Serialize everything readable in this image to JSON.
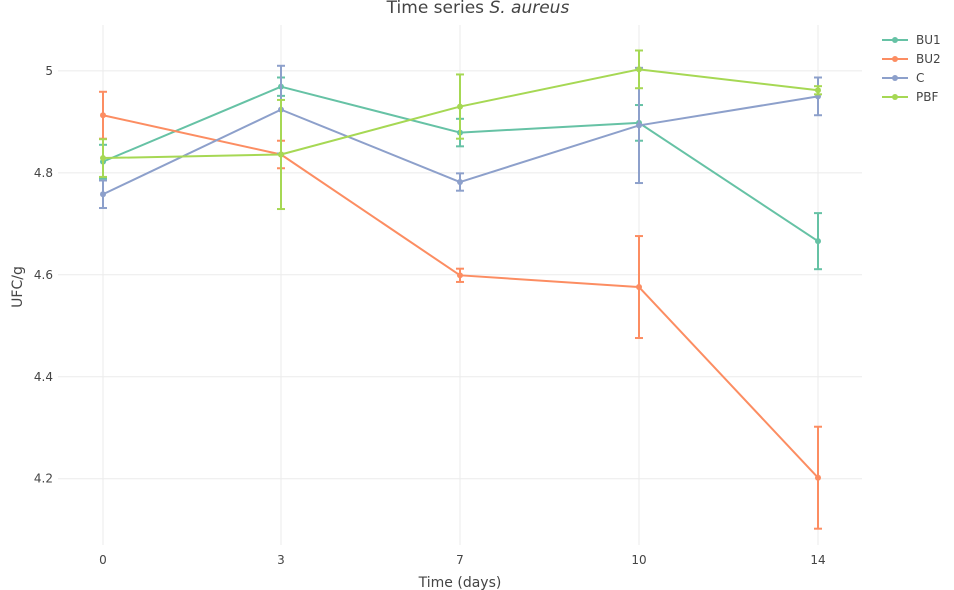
{
  "chart_data": {
    "type": "line",
    "title": {
      "prefix": "Time series ",
      "italic": "S. aureus"
    },
    "xlabel": "Time (days)",
    "ylabel": "UFC/g",
    "x_categories": [
      "0",
      "3",
      "7",
      "10",
      "14"
    ],
    "y_ticks": [
      "4.2",
      "4.4",
      "4.6",
      "4.8",
      "5"
    ],
    "ylim": [
      4.07,
      5.09
    ],
    "grid": true,
    "legend_position": "top-right",
    "series": [
      {
        "name": "BU1",
        "color": "#66c2a5",
        "values": [
          4.822,
          4.969,
          4.879,
          4.898,
          4.666
        ],
        "errors": [
          0.033,
          0.018,
          0.027,
          0.035,
          0.055
        ]
      },
      {
        "name": "BU2",
        "color": "#fc8d62",
        "values": [
          4.913,
          4.836,
          4.599,
          4.576,
          4.202
        ],
        "errors": [
          0.046,
          0.027,
          0.013,
          0.1,
          0.1
        ]
      },
      {
        "name": "C",
        "color": "#8da0cb",
        "values": [
          4.758,
          4.924,
          4.782,
          4.893,
          4.95
        ],
        "errors": [
          0.027,
          0.086,
          0.017,
          0.113,
          0.037
        ]
      },
      {
        "name": "PBF",
        "color": "#a6d854",
        "values": [
          4.829,
          4.836,
          4.93,
          5.003,
          4.962
        ],
        "errors": [
          0.037,
          0.107,
          0.063,
          0.037,
          0.008
        ]
      }
    ]
  }
}
